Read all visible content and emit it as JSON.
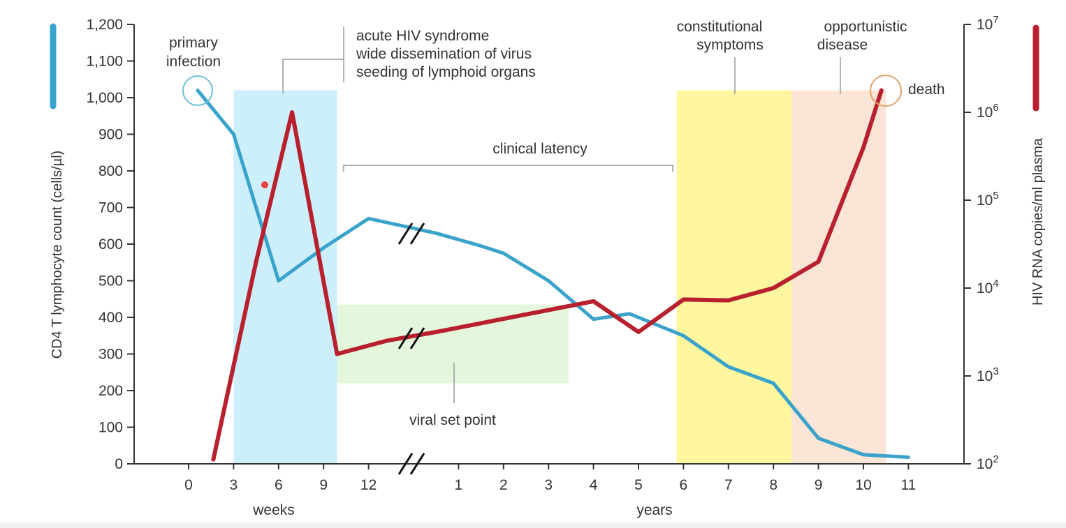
{
  "chart_data": {
    "type": "line",
    "title": "",
    "xlabel_weeks": "weeks",
    "xlabel_years": "years",
    "ylabel_left": "CD4 T lymphocyte count (cells/µl)",
    "ylabel_right": "HIV RNA copies/ml plasma",
    "ylim_left": [
      0,
      1200
    ],
    "ylim_right_log10": [
      2,
      7
    ],
    "x_ticks": [
      {
        "label": "0",
        "x": 0
      },
      {
        "label": "3",
        "x": 1
      },
      {
        "label": "6",
        "x": 2
      },
      {
        "label": "9",
        "x": 3
      },
      {
        "label": "12",
        "x": 4
      },
      {
        "label": "1",
        "x": 6
      },
      {
        "label": "2",
        "x": 7
      },
      {
        "label": "3",
        "x": 8
      },
      {
        "label": "4",
        "x": 9
      },
      {
        "label": "5",
        "x": 10
      },
      {
        "label": "6",
        "x": 11
      },
      {
        "label": "7",
        "x": 12
      },
      {
        "label": "8",
        "x": 13
      },
      {
        "label": "9",
        "x": 14
      },
      {
        "label": "10",
        "x": 15
      },
      {
        "label": "11",
        "x": 16
      }
    ],
    "y_ticks_left": [
      "0",
      "100",
      "200",
      "300",
      "400",
      "500",
      "600",
      "700",
      "800",
      "900",
      "1,000",
      "1,100",
      "1,200"
    ],
    "y_ticks_right": [
      {
        "base": "10",
        "exp": "2"
      },
      {
        "base": "10",
        "exp": "3"
      },
      {
        "base": "10",
        "exp": "4"
      },
      {
        "base": "10",
        "exp": "5"
      },
      {
        "base": "10",
        "exp": "6"
      },
      {
        "base": "10",
        "exp": "7"
      }
    ],
    "series": [
      {
        "name": "CD4 T lymphocyte count",
        "axis": "left",
        "color": "#3aa3cc",
        "points": [
          [
            0.2,
            1020
          ],
          [
            1.0,
            900
          ],
          [
            2.0,
            500
          ],
          [
            3.0,
            590
          ],
          [
            4.0,
            670
          ],
          [
            5.5,
            630
          ],
          [
            6.5,
            595
          ],
          [
            7.0,
            575
          ],
          [
            8.0,
            500
          ],
          [
            9.0,
            395
          ],
          [
            9.8,
            410
          ],
          [
            11.0,
            350
          ],
          [
            12.0,
            265
          ],
          [
            13.0,
            220
          ],
          [
            14.0,
            70
          ],
          [
            15.0,
            25
          ],
          [
            16.0,
            18
          ]
        ]
      },
      {
        "name": "HIV RNA",
        "axis": "right",
        "color": "#b8202e",
        "log10_points": [
          [
            0.55,
            2.05
          ],
          [
            1.5,
            4.3
          ],
          [
            2.3,
            6.0
          ],
          [
            3.3,
            3.25
          ],
          [
            4.4,
            3.4
          ],
          [
            5.5,
            3.5
          ],
          [
            9.0,
            3.85
          ],
          [
            10.0,
            3.5
          ],
          [
            11.0,
            3.87
          ],
          [
            12.0,
            3.86
          ],
          [
            13.0,
            4.0
          ],
          [
            14.0,
            4.3
          ],
          [
            15.0,
            5.6
          ],
          [
            15.4,
            6.25
          ]
        ]
      }
    ],
    "shaded_regions": [
      {
        "name": "acute",
        "x0": 1.0,
        "x1": 3.3,
        "y0": 0,
        "y1": 1020,
        "color": "#cdeefb"
      },
      {
        "name": "viral-set-point",
        "x0": 3.3,
        "x1": 8.45,
        "y0": 220,
        "y1": 435,
        "color": "#e4f7dd"
      },
      {
        "name": "constitutional",
        "x0": 10.85,
        "x1": 13.4,
        "y0": 0,
        "y1": 1020,
        "color": "#fff6a0"
      },
      {
        "name": "opportunistic",
        "x0": 13.4,
        "x1": 15.5,
        "y0": 0,
        "y1": 1020,
        "color": "#fbe5d6"
      }
    ],
    "annotations": {
      "primary_infection": [
        "primary",
        "infection"
      ],
      "acute": [
        "acute HIV syndrome",
        "wide dissemination of virus",
        "seeding of lymphoid organs"
      ],
      "clinical_latency": "clinical latency",
      "viral_set_point": "viral set point",
      "constitutional": [
        "constitutional",
        "symptoms"
      ],
      "opportunistic": [
        "opportunistic",
        "disease"
      ],
      "death": "death"
    }
  }
}
